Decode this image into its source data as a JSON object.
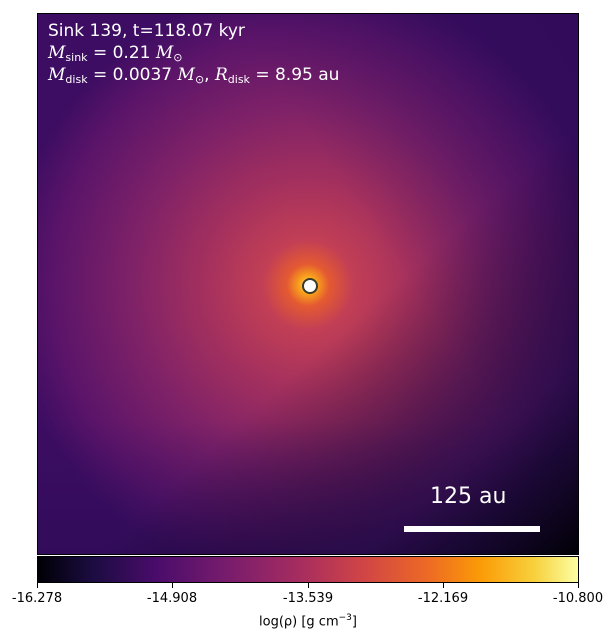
{
  "panel": {
    "title_line": "Sink 139, t=118.07 kyr",
    "m_sink_label": "M",
    "m_sink_sub": "sink",
    "m_sink_value": " = 0.21 ",
    "m_sun": "M",
    "m_sun_sub": "⊙",
    "m_disk_label": "M",
    "m_disk_sub": "disk",
    "m_disk_value": " = 0.0037 ",
    "r_disk_label": "R",
    "r_disk_sub": "disk",
    "r_disk_value": " = 8.95 au",
    "scale_bar_label": "125 au"
  },
  "colorbar": {
    "ticks": [
      "-16.278",
      "-14.908",
      "-13.539",
      "-12.169",
      "-10.800"
    ],
    "label_prefix": "log(ρ) [g cm",
    "label_exp": "−3",
    "label_suffix": "]",
    "colormap": "inferno"
  }
}
